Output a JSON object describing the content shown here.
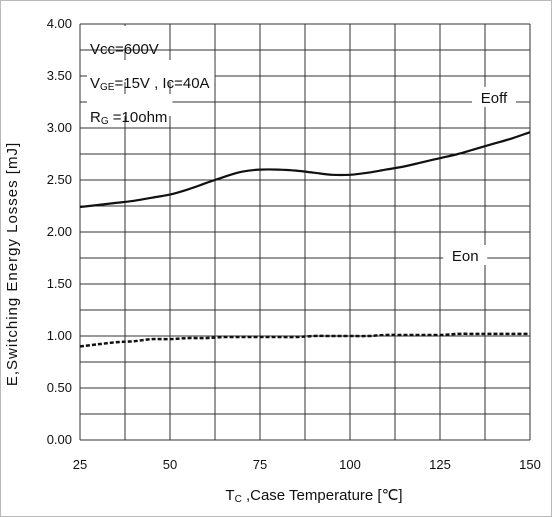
{
  "chart_data": {
    "type": "line",
    "xlabel": "Tc ,Case Temperature [℃]",
    "xlabel_parts": {
      "sym": "T",
      "sub": "C",
      "rest": " ,Case Temperature [℃]"
    },
    "ylabel": "E,Switching Energy Losses  [mJ]",
    "x_ticks": [
      "25",
      "50",
      "75",
      "100",
      "125",
      "150"
    ],
    "y_ticks": [
      "0.00",
      "0.50",
      "1.00",
      "1.50",
      "2.00",
      "2.50",
      "3.00",
      "3.50",
      "4.00"
    ],
    "xlim": [
      25,
      150
    ],
    "ylim": [
      0,
      4
    ],
    "grid": true,
    "conditions": [
      {
        "sym": "Vcc",
        "sub": "",
        "rest": "=600V"
      },
      {
        "sym": "V",
        "sub": "GE",
        "rest": "=15V , Ic=40A"
      },
      {
        "sym": "R",
        "sub": "G",
        "rest": " =10ohm"
      }
    ],
    "series": [
      {
        "name": "Eoff",
        "style": "solid",
        "x": [
          25,
          30,
          35,
          40,
          45,
          50,
          55,
          60,
          65,
          70,
          75,
          80,
          85,
          90,
          95,
          100,
          105,
          110,
          115,
          120,
          125,
          130,
          135,
          140,
          145,
          150
        ],
        "y": [
          2.24,
          2.26,
          2.28,
          2.3,
          2.33,
          2.36,
          2.41,
          2.47,
          2.53,
          2.58,
          2.6,
          2.6,
          2.59,
          2.57,
          2.55,
          2.55,
          2.57,
          2.6,
          2.63,
          2.67,
          2.71,
          2.75,
          2.8,
          2.85,
          2.9,
          2.96
        ]
      },
      {
        "name": "Eon",
        "style": "dashed",
        "x": [
          25,
          30,
          35,
          40,
          45,
          50,
          55,
          60,
          65,
          70,
          75,
          80,
          85,
          90,
          95,
          100,
          105,
          110,
          115,
          120,
          125,
          130,
          135,
          140,
          145,
          150
        ],
        "y": [
          0.9,
          0.92,
          0.94,
          0.95,
          0.97,
          0.97,
          0.98,
          0.98,
          0.99,
          0.99,
          0.99,
          0.99,
          0.99,
          1.0,
          1.0,
          1.0,
          1.0,
          1.01,
          1.01,
          1.01,
          1.01,
          1.02,
          1.02,
          1.02,
          1.02,
          1.02
        ]
      }
    ]
  }
}
